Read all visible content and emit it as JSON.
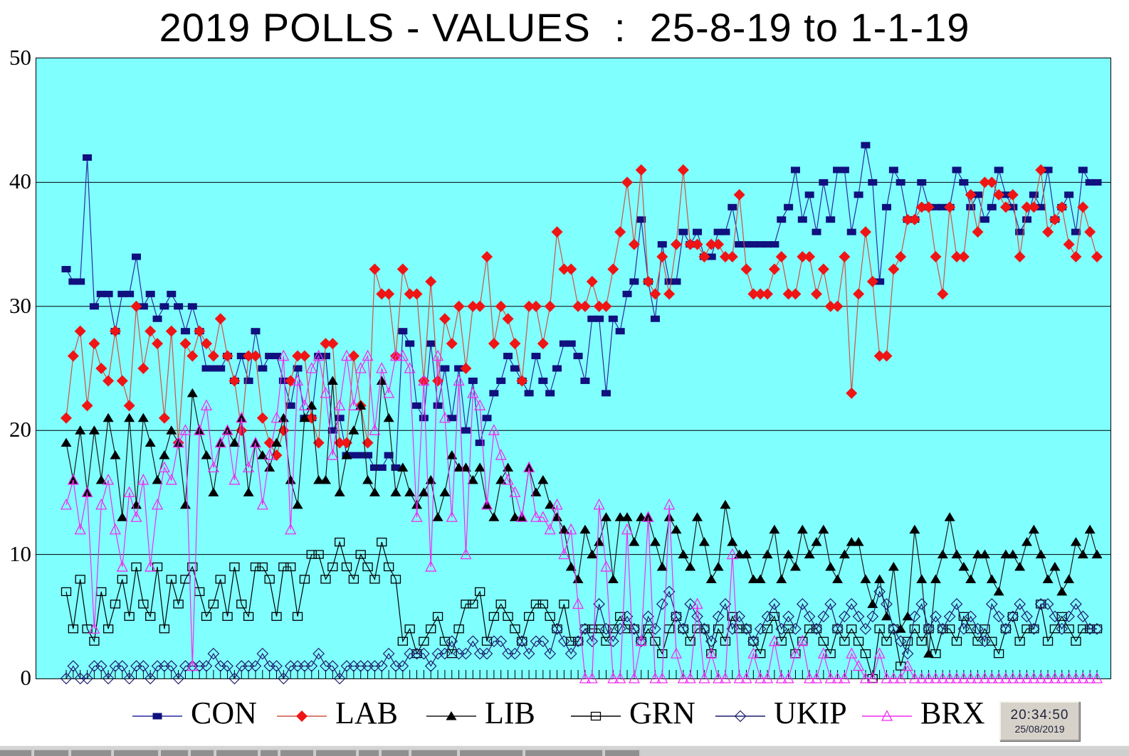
{
  "title": "2019 POLLS - VALUES  :  25-8-19 to 1-1-19",
  "clock": {
    "time": "20:34:50",
    "date": "25/08/2019"
  },
  "chart_data": {
    "type": "line",
    "title": "2019 POLLS - VALUES : 25-8-19 to 1-1-19",
    "x_axis": {
      "description": "poll dates, most recent (25-8-19) at left to oldest (1-1-19) at right",
      "tick_count": 148
    },
    "ylim": [
      0,
      50
    ],
    "y_ticks": [
      50,
      40,
      30,
      20,
      10,
      0
    ],
    "grid": "horizontal",
    "plot_background": "#80ffff",
    "legend_position": "bottom",
    "series": [
      {
        "name": "CON",
        "marker": "square-filled",
        "marker_color": "#10107e",
        "line_color": "#2b2b9e",
        "values": [
          33,
          32,
          32,
          42,
          30,
          31,
          31,
          28,
          31,
          31,
          34,
          30,
          31,
          29,
          30,
          31,
          30,
          28,
          30,
          28,
          25,
          25,
          25,
          26,
          24,
          26,
          24,
          28,
          25,
          26,
          26,
          24,
          22,
          25,
          21,
          21,
          26,
          26,
          20,
          21,
          18,
          18,
          18,
          18,
          17,
          17,
          18,
          17,
          28,
          27,
          22,
          21,
          27,
          22,
          25,
          21,
          25,
          20,
          24,
          19,
          21,
          23,
          24,
          26,
          25,
          24,
          23,
          26,
          24,
          23,
          25,
          27,
          27,
          26,
          24,
          29,
          29,
          23,
          29,
          28,
          31,
          32,
          37,
          32,
          29,
          35,
          32,
          32,
          36,
          35,
          36,
          34,
          34,
          36,
          36,
          38,
          35,
          35,
          35,
          35,
          35,
          35,
          37,
          38,
          41,
          37,
          39,
          36,
          40,
          37,
          41,
          41,
          36,
          39,
          43,
          40,
          32,
          38,
          41,
          40,
          37,
          37,
          40,
          38,
          38,
          38,
          38,
          41,
          40,
          38,
          39,
          37,
          38,
          41,
          39,
          38,
          36,
          37,
          39,
          38,
          41,
          37,
          38,
          39,
          36,
          41,
          40,
          40
        ]
      },
      {
        "name": "LAB",
        "marker": "diamond-filled",
        "marker_color": "#ef1515",
        "line_color": "#cf5244",
        "values": [
          21,
          26,
          28,
          22,
          27,
          25,
          24,
          28,
          24,
          22,
          30,
          25,
          28,
          27,
          21,
          28,
          19,
          27,
          26,
          28,
          27,
          26,
          29,
          26,
          24,
          20,
          26,
          26,
          21,
          19,
          18,
          20,
          24,
          26,
          26,
          21,
          19,
          27,
          27,
          19,
          19,
          26,
          22,
          19,
          33,
          31,
          31,
          26,
          33,
          31,
          31,
          24,
          32,
          24,
          29,
          27,
          30,
          25,
          30,
          30,
          34,
          27,
          30,
          29,
          27,
          24,
          30,
          30,
          27,
          30,
          36,
          33,
          33,
          30,
          30,
          32,
          30,
          30,
          33,
          36,
          40,
          35,
          41,
          32,
          31,
          34,
          31,
          35,
          41,
          35,
          35,
          34,
          35,
          35,
          34,
          34,
          39,
          33,
          31,
          31,
          31,
          33,
          34,
          31,
          31,
          34,
          34,
          31,
          33,
          30,
          30,
          34,
          23,
          31,
          36,
          32,
          26,
          26,
          33,
          34,
          37,
          37,
          38,
          38,
          34,
          31,
          38,
          34,
          34,
          39,
          36,
          40,
          40,
          39,
          38,
          39,
          34,
          38,
          38,
          41,
          36,
          37,
          38,
          35,
          34,
          38,
          36,
          34
        ]
      },
      {
        "name": "LIB",
        "marker": "triangle-filled",
        "marker_color": "#000000",
        "line_color": "#1a1a1a",
        "values": [
          19,
          16,
          20,
          15,
          20,
          16,
          21,
          18,
          13,
          21,
          14,
          21,
          19,
          16,
          18,
          20,
          19,
          14,
          23,
          20,
          18,
          15,
          19,
          20,
          19,
          21,
          15,
          19,
          18,
          17,
          19,
          21,
          16,
          14,
          21,
          22,
          16,
          16,
          24,
          15,
          18,
          20,
          22,
          16,
          15,
          24,
          21,
          15,
          17,
          15,
          14,
          15,
          16,
          13,
          15,
          18,
          17,
          17,
          16,
          17,
          14,
          13,
          16,
          17,
          13,
          13,
          17,
          15,
          16,
          14,
          13,
          12,
          9,
          8,
          12,
          10,
          11,
          13,
          8,
          13,
          13,
          11,
          13,
          13,
          11,
          9,
          13,
          12,
          10,
          9,
          13,
          11,
          8,
          9,
          14,
          11,
          10,
          10,
          8,
          8,
          10,
          12,
          8,
          10,
          9,
          12,
          10,
          11,
          12,
          9,
          8,
          10,
          11,
          11,
          8,
          6,
          8,
          5,
          9,
          4,
          5,
          12,
          8,
          2,
          8,
          10,
          13,
          10,
          9,
          8,
          10,
          10,
          8,
          7,
          10,
          10,
          9,
          11,
          12,
          10,
          8,
          9,
          7,
          8,
          11,
          10,
          12,
          10
        ]
      },
      {
        "name": "GRN",
        "marker": "square-open",
        "marker_color": "#000000",
        "line_color": "#000000",
        "values": [
          7,
          4,
          8,
          4,
          3,
          7,
          4,
          6,
          8,
          5,
          9,
          6,
          5,
          9,
          4,
          8,
          6,
          8,
          9,
          7,
          5,
          6,
          8,
          5,
          9,
          6,
          5,
          9,
          9,
          8,
          5,
          9,
          9,
          5,
          8,
          10,
          10,
          8,
          9,
          11,
          9,
          8,
          10,
          9,
          8,
          11,
          9,
          8,
          3,
          4,
          2,
          3,
          4,
          5,
          3,
          2,
          4,
          6,
          6,
          7,
          3,
          5,
          6,
          5,
          4,
          3,
          5,
          6,
          6,
          5,
          4,
          6,
          3,
          3,
          4,
          4,
          4,
          3,
          4,
          5,
          4,
          4,
          3,
          4,
          3,
          2,
          4,
          5,
          4,
          3,
          4,
          4,
          2,
          4,
          3,
          5,
          4,
          4,
          3,
          2,
          4,
          5,
          3,
          4,
          2,
          3,
          4,
          4,
          3,
          2,
          4,
          3,
          4,
          3,
          2,
          0,
          4,
          3,
          4,
          1,
          3,
          4,
          3,
          4,
          2,
          4,
          4,
          3,
          5,
          4,
          3,
          4,
          3,
          2,
          4,
          5,
          3,
          4,
          4,
          6,
          3,
          4,
          5,
          4,
          3,
          4,
          4,
          4
        ]
      },
      {
        "name": "UKIP",
        "marker": "diamond-open",
        "marker_color": "#1c1c6e",
        "line_color": "#1c1c6e",
        "values": [
          0,
          1,
          0,
          0,
          1,
          1,
          0,
          1,
          1,
          0,
          1,
          1,
          0,
          1,
          1,
          1,
          0,
          1,
          1,
          1,
          1,
          2,
          1,
          1,
          0,
          1,
          1,
          1,
          2,
          1,
          1,
          0,
          1,
          1,
          1,
          1,
          2,
          1,
          1,
          0,
          1,
          1,
          1,
          1,
          1,
          1,
          2,
          1,
          1,
          2,
          2,
          2,
          1,
          2,
          2,
          3,
          2,
          2,
          3,
          2,
          2,
          3,
          3,
          2,
          2,
          3,
          2,
          3,
          3,
          2,
          4,
          3,
          2,
          3,
          4,
          3,
          6,
          4,
          3,
          4,
          5,
          4,
          3,
          5,
          4,
          6,
          7,
          5,
          4,
          6,
          5,
          4,
          3,
          5,
          6,
          4,
          5,
          4,
          3,
          4,
          5,
          6,
          4,
          5,
          4,
          6,
          5,
          4,
          5,
          6,
          4,
          5,
          6,
          5,
          4,
          5,
          7,
          6,
          4,
          3,
          2,
          5,
          6,
          4,
          5,
          4,
          5,
          6,
          4,
          5,
          4,
          3,
          6,
          5,
          4,
          5,
          6,
          5,
          4,
          6,
          6,
          5,
          4,
          5,
          6,
          5,
          4,
          4
        ]
      },
      {
        "name": "BRX",
        "marker": "triangle-open",
        "marker_color": "#ee2fee",
        "line_color": "#ee2fee",
        "values": [
          14,
          16,
          12,
          15,
          4,
          14,
          16,
          12,
          9,
          15,
          13,
          16,
          9,
          14,
          17,
          16,
          19,
          20,
          1,
          20,
          22,
          17,
          19,
          20,
          16,
          21,
          17,
          19,
          14,
          18,
          21,
          26,
          12,
          24,
          22,
          25,
          26,
          23,
          18,
          22,
          26,
          22,
          25,
          26,
          20,
          25,
          23,
          26,
          26,
          25,
          13,
          24,
          9,
          26,
          21,
          13,
          24,
          10,
          23,
          22,
          14,
          20,
          18,
          16,
          15,
          13,
          17,
          13,
          13,
          12,
          14,
          10,
          12,
          6,
          0,
          0,
          14,
          9,
          0,
          0,
          12,
          0,
          3,
          13,
          0,
          0,
          14,
          2,
          0,
          0,
          6,
          0,
          2,
          0,
          0,
          10,
          0,
          0,
          2,
          0,
          0,
          3,
          0,
          0,
          2,
          3,
          0,
          0,
          2,
          0,
          0,
          0,
          2,
          1,
          0,
          0,
          2,
          0,
          0,
          0,
          1,
          0,
          0,
          0,
          0,
          0,
          0,
          0,
          0,
          0,
          0,
          0,
          0,
          0,
          0,
          0,
          0,
          0,
          0,
          0,
          0,
          0,
          0,
          0,
          0,
          0,
          0,
          0
        ]
      }
    ]
  }
}
